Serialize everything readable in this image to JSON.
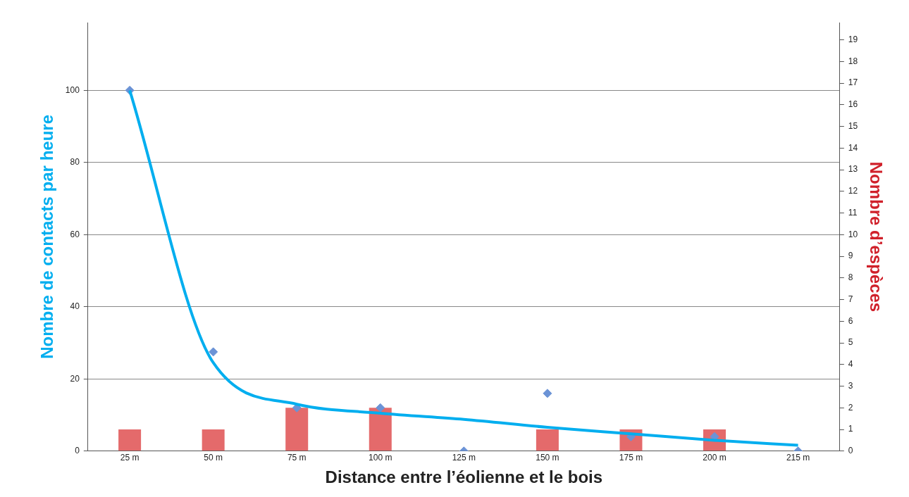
{
  "chart_data": {
    "type": "bar",
    "xlabel": "Distance entre l’éolienne et le bois",
    "ylabel": "Nombre de contacts par heure",
    "y2label": "Nombre d’espèces",
    "categories": [
      "25 m",
      "50 m",
      "75 m",
      "100 m",
      "125 m",
      "150 m",
      "175 m",
      "200 m",
      "215 m"
    ],
    "series": [
      {
        "axis": "y2",
        "color": "#e46a6b",
        "values": [
          1,
          1,
          2,
          2,
          0,
          1,
          1,
          1,
          0
        ]
      },
      {
        "type": "scatter",
        "axis": "y",
        "color": "#6b93d6",
        "marker": "diamond",
        "values": [
          100,
          27.5,
          12,
          12,
          0,
          16,
          4,
          4,
          0
        ]
      },
      {
        "type": "line",
        "axis": "y",
        "color": "#00aeef",
        "marker": "none",
        "line_style": "solid",
        "values": [
          100,
          24.5,
          13,
          10.5,
          8.8,
          6.6,
          4.8,
          3,
          1.6
        ]
      }
    ],
    "ylim": [
      0,
      118.8
    ],
    "yticks": [
      0,
      20,
      40,
      60,
      80,
      100
    ],
    "y2lim": [
      0,
      19.8
    ],
    "y2ticks": [
      0,
      1,
      2,
      3,
      4,
      5,
      6,
      7,
      8,
      9,
      10,
      11,
      12,
      13,
      14,
      15,
      16,
      17,
      18,
      19
    ],
    "grid": "y",
    "legend": false
  }
}
